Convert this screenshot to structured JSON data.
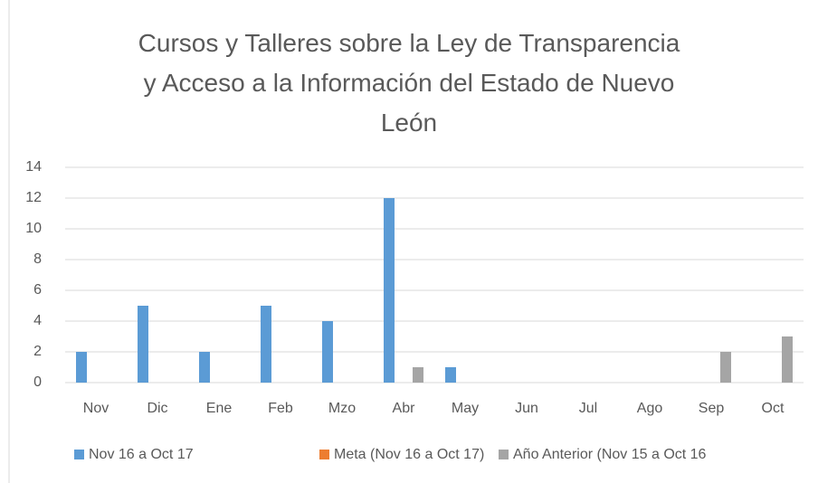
{
  "chart_data": {
    "type": "bar",
    "title": "Cursos y Talleres sobre la Ley de Transparencia y Acceso a la Información del Estado de Nuevo León",
    "categories": [
      "Nov",
      "Dic",
      "Ene",
      "Feb",
      "Mzo",
      "Abr",
      "May",
      "Jun",
      "Jul",
      "Ago",
      "Sep",
      "Oct"
    ],
    "series": [
      {
        "name": "Nov 16 a Oct 17",
        "color": "#5b9bd5",
        "values": [
          2,
          5,
          2,
          5,
          4,
          12,
          1,
          null,
          null,
          null,
          null,
          null
        ]
      },
      {
        "name": "Meta (Nov 16 a Oct 17)",
        "color": "#ed7d31",
        "values": [
          null,
          null,
          null,
          null,
          null,
          null,
          null,
          null,
          null,
          null,
          null,
          null
        ]
      },
      {
        "name": "Año Anterior (Nov 15 a Oct 16",
        "color": "#a5a5a5",
        "values": [
          null,
          null,
          null,
          null,
          null,
          1,
          null,
          null,
          null,
          null,
          2,
          3
        ]
      }
    ],
    "ylim": [
      0,
      14
    ],
    "yticks": [
      0,
      2,
      4,
      6,
      8,
      10,
      12,
      14
    ],
    "grid": true,
    "legend": "bottom"
  }
}
